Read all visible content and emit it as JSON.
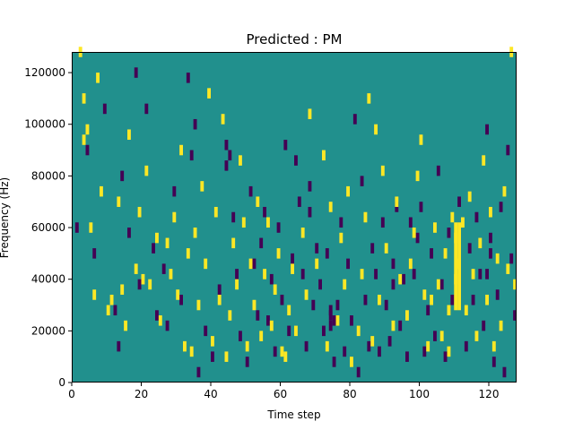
{
  "chart_data": {
    "type": "heatmap",
    "title": "Predicted : PM",
    "xlabel": "Time step",
    "ylabel": "Frequency (Hz)",
    "xlim": [
      0,
      128
    ],
    "ylim": [
      0,
      128000
    ],
    "xticks": [
      0,
      20,
      40,
      60,
      80,
      100,
      120
    ],
    "xtick_labels": [
      "0",
      "20",
      "40",
      "60",
      "80",
      "100",
      "120"
    ],
    "yticks": [
      0,
      20000,
      40000,
      60000,
      80000,
      100000,
      120000
    ],
    "ytick_labels": [
      "0",
      "20000",
      "40000",
      "60000",
      "80000",
      "100000",
      "120000"
    ],
    "grid": false,
    "legend": "none",
    "colors": {
      "background": "#21908d",
      "low": "#440154",
      "high": "#fde725"
    },
    "cell_height_hz": 4000,
    "high_cells": [
      [
        2,
        126
      ],
      [
        3,
        108
      ],
      [
        3,
        92
      ],
      [
        4,
        96
      ],
      [
        5,
        58
      ],
      [
        6,
        32
      ],
      [
        7,
        116
      ],
      [
        8,
        72
      ],
      [
        10,
        26
      ],
      [
        11,
        30
      ],
      [
        13,
        68
      ],
      [
        14,
        34
      ],
      [
        15,
        20
      ],
      [
        16,
        94
      ],
      [
        18,
        42
      ],
      [
        19,
        64
      ],
      [
        20,
        38
      ],
      [
        21,
        80
      ],
      [
        22,
        36
      ],
      [
        24,
        54
      ],
      [
        25,
        22
      ],
      [
        27,
        52
      ],
      [
        28,
        40
      ],
      [
        29,
        62
      ],
      [
        30,
        32
      ],
      [
        31,
        88
      ],
      [
        32,
        12
      ],
      [
        33,
        48
      ],
      [
        34,
        10
      ],
      [
        35,
        56
      ],
      [
        36,
        28
      ],
      [
        37,
        74
      ],
      [
        38,
        44
      ],
      [
        39,
        110
      ],
      [
        40,
        14
      ],
      [
        41,
        64
      ],
      [
        42,
        30
      ],
      [
        43,
        100
      ],
      [
        44,
        8
      ],
      [
        45,
        24
      ],
      [
        46,
        52
      ],
      [
        47,
        36
      ],
      [
        48,
        84
      ],
      [
        49,
        60
      ],
      [
        50,
        12
      ],
      [
        51,
        44
      ],
      [
        52,
        28
      ],
      [
        53,
        68
      ],
      [
        54,
        16
      ],
      [
        55,
        40
      ],
      [
        56,
        60
      ],
      [
        57,
        20
      ],
      [
        58,
        34
      ],
      [
        59,
        48
      ],
      [
        60,
        10
      ],
      [
        61,
        8
      ],
      [
        62,
        26
      ],
      [
        63,
        42
      ],
      [
        64,
        18
      ],
      [
        66,
        56
      ],
      [
        67,
        32
      ],
      [
        68,
        102
      ],
      [
        70,
        44
      ],
      [
        72,
        86
      ],
      [
        73,
        12
      ],
      [
        74,
        66
      ],
      [
        76,
        22
      ],
      [
        77,
        54
      ],
      [
        78,
        36
      ],
      [
        79,
        72
      ],
      [
        80,
        6
      ],
      [
        82,
        18
      ],
      [
        83,
        40
      ],
      [
        84,
        62
      ],
      [
        85,
        108
      ],
      [
        86,
        14
      ],
      [
        87,
        96
      ],
      [
        88,
        30
      ],
      [
        89,
        80
      ],
      [
        90,
        50
      ],
      [
        92,
        20
      ],
      [
        93,
        68
      ],
      [
        94,
        38
      ],
      [
        96,
        24
      ],
      [
        97,
        44
      ],
      [
        98,
        56
      ],
      [
        99,
        78
      ],
      [
        100,
        92
      ],
      [
        101,
        32
      ],
      [
        102,
        12
      ],
      [
        104,
        58
      ],
      [
        105,
        36
      ],
      [
        106,
        16
      ],
      [
        107,
        48
      ],
      [
        108,
        10
      ],
      [
        109,
        62
      ],
      [
        110,
        38
      ],
      [
        110,
        54
      ],
      [
        111,
        44
      ],
      [
        112,
        60
      ],
      [
        113,
        26
      ],
      [
        114,
        70
      ],
      [
        115,
        40
      ],
      [
        116,
        16
      ],
      [
        117,
        52
      ],
      [
        118,
        84
      ],
      [
        119,
        30
      ],
      [
        120,
        64
      ],
      [
        121,
        12
      ],
      [
        122,
        46
      ],
      [
        123,
        20
      ],
      [
        124,
        72
      ],
      [
        125,
        42
      ],
      [
        126,
        126
      ],
      [
        127,
        36
      ],
      [
        103,
        30
      ],
      [
        108,
        26
      ]
    ],
    "low_cells": [
      [
        1,
        58
      ],
      [
        4,
        88
      ],
      [
        6,
        48
      ],
      [
        9,
        104
      ],
      [
        12,
        26
      ],
      [
        13,
        12
      ],
      [
        14,
        78
      ],
      [
        16,
        56
      ],
      [
        18,
        118
      ],
      [
        19,
        36
      ],
      [
        21,
        104
      ],
      [
        23,
        50
      ],
      [
        24,
        24
      ],
      [
        26,
        42
      ],
      [
        27,
        20
      ],
      [
        29,
        72
      ],
      [
        31,
        30
      ],
      [
        33,
        116
      ],
      [
        34,
        86
      ],
      [
        35,
        98
      ],
      [
        36,
        2
      ],
      [
        38,
        18
      ],
      [
        40,
        8
      ],
      [
        42,
        34
      ],
      [
        44,
        90
      ],
      [
        45,
        86
      ],
      [
        46,
        62
      ],
      [
        47,
        40
      ],
      [
        48,
        16
      ],
      [
        50,
        6
      ],
      [
        51,
        72
      ],
      [
        52,
        44
      ],
      [
        53,
        24
      ],
      [
        54,
        52
      ],
      [
        55,
        64
      ],
      [
        56,
        22
      ],
      [
        57,
        38
      ],
      [
        58,
        10
      ],
      [
        59,
        58
      ],
      [
        60,
        30
      ],
      [
        61,
        90
      ],
      [
        62,
        18
      ],
      [
        63,
        46
      ],
      [
        64,
        84
      ],
      [
        65,
        68
      ],
      [
        66,
        40
      ],
      [
        67,
        12
      ],
      [
        68,
        74
      ],
      [
        69,
        28
      ],
      [
        70,
        50
      ],
      [
        71,
        36
      ],
      [
        72,
        18
      ],
      [
        73,
        48
      ],
      [
        74,
        20
      ],
      [
        75,
        6
      ],
      [
        76,
        28
      ],
      [
        77,
        60
      ],
      [
        78,
        10
      ],
      [
        79,
        44
      ],
      [
        80,
        22
      ],
      [
        81,
        100
      ],
      [
        82,
        2
      ],
      [
        83,
        76
      ],
      [
        84,
        30
      ],
      [
        85,
        12
      ],
      [
        86,
        50
      ],
      [
        87,
        40
      ],
      [
        88,
        10
      ],
      [
        89,
        60
      ],
      [
        90,
        28
      ],
      [
        91,
        14
      ],
      [
        92,
        44
      ],
      [
        93,
        66
      ],
      [
        94,
        20
      ],
      [
        95,
        38
      ],
      [
        96,
        8
      ],
      [
        97,
        60
      ],
      [
        98,
        40
      ],
      [
        99,
        54
      ],
      [
        100,
        66
      ],
      [
        101,
        10
      ],
      [
        102,
        26
      ],
      [
        103,
        48
      ],
      [
        104,
        16
      ],
      [
        105,
        80
      ],
      [
        106,
        36
      ],
      [
        107,
        8
      ],
      [
        108,
        56
      ],
      [
        109,
        30
      ],
      [
        111,
        68
      ],
      [
        113,
        12
      ],
      [
        114,
        50
      ],
      [
        115,
        30
      ],
      [
        116,
        62
      ],
      [
        117,
        40
      ],
      [
        118,
        20
      ],
      [
        119,
        96
      ],
      [
        120,
        54
      ],
      [
        121,
        6
      ],
      [
        122,
        32
      ],
      [
        123,
        66
      ],
      [
        124,
        2
      ],
      [
        125,
        88
      ],
      [
        126,
        46
      ],
      [
        127,
        24
      ],
      [
        119,
        40
      ],
      [
        44,
        82
      ],
      [
        92,
        36
      ],
      [
        68,
        64
      ],
      [
        74,
        24
      ],
      [
        75,
        22
      ],
      [
        74,
        26
      ],
      [
        120,
        48
      ]
    ],
    "high_bars": [
      {
        "x": 110,
        "y_range": [
          28000,
          62000
        ]
      },
      {
        "x": 111,
        "y_range": [
          28000,
          62000
        ]
      }
    ]
  }
}
